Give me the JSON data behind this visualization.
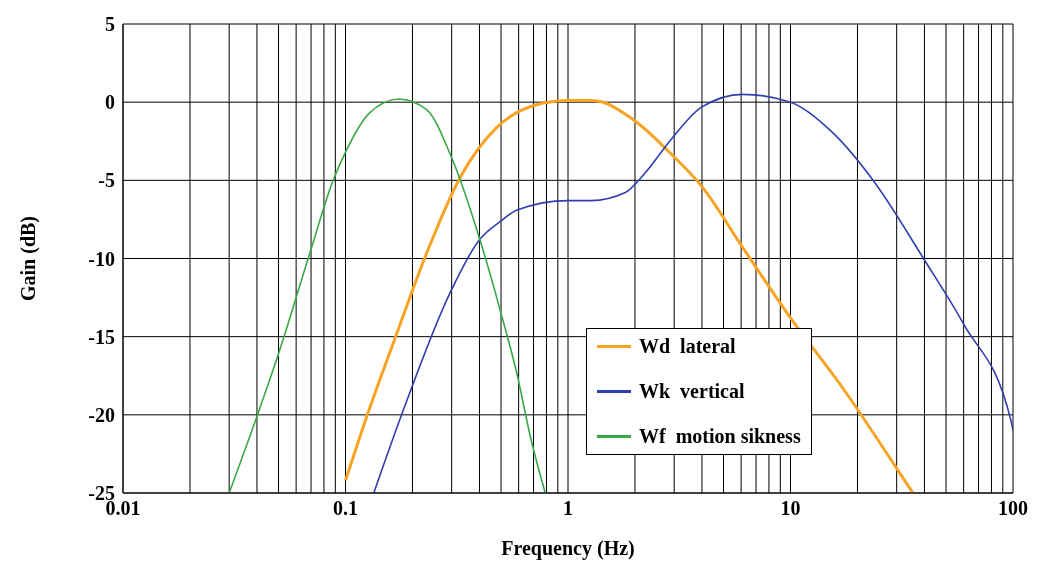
{
  "chart_data": {
    "type": "line",
    "xlabel": "Frequency (Hz)",
    "ylabel": "Gain (dB)",
    "log": "x",
    "grid": true,
    "legend": "bottom right",
    "marker": "none",
    "line_style": "solid",
    "xlim": [
      0.01,
      100
    ],
    "ylim": [
      -25,
      5
    ],
    "xticks": [
      0.01,
      {
        "value": 0.02,
        "label": null
      },
      {
        "value": 0.03,
        "label": null
      },
      {
        "value": 0.04,
        "label": null
      },
      {
        "value": 0.05,
        "label": null
      },
      {
        "value": 0.06,
        "label": null
      },
      {
        "value": 0.07,
        "label": null
      },
      {
        "value": 0.08,
        "label": null
      },
      {
        "value": 0.09,
        "label": null
      },
      0.1,
      {
        "value": 0.2,
        "label": null
      },
      {
        "value": 0.3,
        "label": null
      },
      {
        "value": 0.4,
        "label": null
      },
      {
        "value": 0.5,
        "label": null
      },
      {
        "value": 0.6,
        "label": null
      },
      {
        "value": 0.7,
        "label": null
      },
      {
        "value": 0.8,
        "label": null
      },
      {
        "value": 0.9,
        "label": null
      },
      1,
      {
        "value": 2,
        "label": null
      },
      {
        "value": 3,
        "label": null
      },
      {
        "value": 4,
        "label": null
      },
      {
        "value": 5,
        "label": null
      },
      {
        "value": 6,
        "label": null
      },
      {
        "value": 7,
        "label": null
      },
      {
        "value": 8,
        "label": null
      },
      {
        "value": 9,
        "label": null
      },
      10,
      {
        "value": 20,
        "label": null
      },
      {
        "value": 30,
        "label": null
      },
      {
        "value": 40,
        "label": null
      },
      {
        "value": 50,
        "label": null
      },
      {
        "value": 60,
        "label": null
      },
      {
        "value": 70,
        "label": null
      },
      {
        "value": 80,
        "label": null
      },
      {
        "value": 90,
        "label": null
      },
      100
    ],
    "yticks": [
      5,
      0,
      -5,
      -10,
      -15,
      -20,
      -25
    ],
    "series": [
      {
        "name": "Wd  lateral",
        "color": "#f7a325",
        "x": [
          0.1,
          0.124,
          0.167,
          0.228,
          0.328,
          0.48,
          0.71,
          1.0,
          1.29,
          2.0,
          2.9,
          4.0,
          6.1,
          10,
          17.2,
          29,
          35.5
        ],
        "values": [
          -24.2,
          -20.2,
          -15.1,
          -9.9,
          -4.8,
          -1.6,
          -0.2,
          0.1,
          0.1,
          -1.2,
          -3.3,
          -5.4,
          -9.3,
          -13.8,
          -18.3,
          -23.1,
          -25
        ]
      },
      {
        "name": "Wk  vertical",
        "color": "#2f3fb0",
        "x": [
          0.134,
          0.183,
          0.295,
          0.4,
          0.5,
          0.59,
          1.0,
          1.27,
          1.8,
          2.2,
          2.9,
          4.0,
          6.1,
          10,
          15.6,
          23.5,
          39.6,
          60,
          98,
          100
        ],
        "values": [
          -25,
          -19.6,
          -12.2,
          -8.8,
          -7.6,
          -6.9,
          -6.3,
          -6.3,
          -5.8,
          -4.6,
          -2.4,
          -0.3,
          0.5,
          0.0,
          -2.0,
          -5.0,
          -10,
          -14.2,
          -20.4,
          -21
        ]
      },
      {
        "name": "Wf  motion sikness",
        "color": "#3aa845",
        "x": [
          0.03,
          0.04,
          0.05,
          0.069,
          0.088,
          0.1,
          0.128,
          0.174,
          0.232,
          0.295,
          0.4,
          0.5,
          0.59,
          0.68,
          0.79
        ],
        "values": [
          -25,
          -20.1,
          -16.1,
          -9.7,
          -5,
          -3.2,
          -0.7,
          0.2,
          -0.5,
          -3.3,
          -8.7,
          -13.5,
          -17.4,
          -21.5,
          -25
        ]
      }
    ]
  }
}
